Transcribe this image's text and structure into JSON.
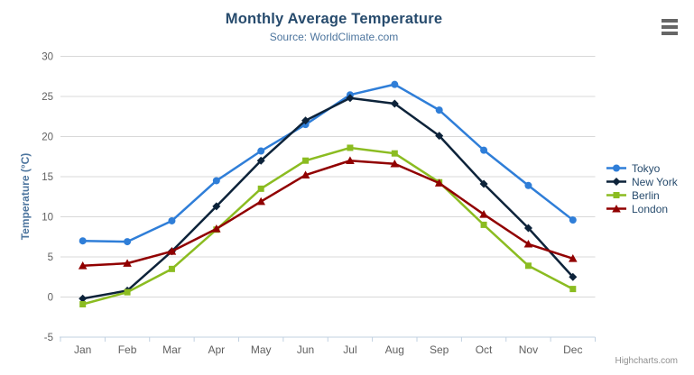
{
  "header": {
    "title": "Monthly Average Temperature",
    "subtitle": "Source: WorldClimate.com"
  },
  "credits": "Highcharts.com",
  "export_menu": {
    "icon": "hamburger-menu-icon"
  },
  "palette": {
    "title_text": "#274b6d",
    "subtitle_text": "#4d759e",
    "axis_title_text": "#4d759e",
    "tick_label_text": "#606060",
    "legend_text": "#274b6d",
    "grid_line": "#d8d8d8",
    "axis_line": "#c0d0e0",
    "credits_text": "#8f8f8f",
    "menu_icon": "#666666"
  },
  "chart_data": {
    "type": "line",
    "title": "Monthly Average Temperature",
    "subtitle": "Source: WorldClimate.com",
    "xlabel": "",
    "ylabel": "Temperature (°C)",
    "categories": [
      "Jan",
      "Feb",
      "Mar",
      "Apr",
      "May",
      "Jun",
      "Jul",
      "Aug",
      "Sep",
      "Oct",
      "Nov",
      "Dec"
    ],
    "ylim": [
      -5,
      30
    ],
    "yticks": [
      -5,
      0,
      5,
      10,
      15,
      20,
      25,
      30
    ],
    "grid": true,
    "legend_position": "right",
    "series": [
      {
        "name": "Tokyo",
        "color": "#2f7ed8",
        "marker": "circle",
        "values": [
          7.0,
          6.9,
          9.5,
          14.5,
          18.2,
          21.5,
          25.2,
          26.5,
          23.3,
          18.3,
          13.9,
          9.6
        ]
      },
      {
        "name": "New York",
        "color": "#0d233a",
        "marker": "diamond",
        "values": [
          -0.2,
          0.8,
          5.7,
          11.3,
          17.0,
          22.0,
          24.8,
          24.1,
          20.1,
          14.1,
          8.6,
          2.5
        ]
      },
      {
        "name": "Berlin",
        "color": "#8bbc21",
        "marker": "square",
        "values": [
          -0.9,
          0.6,
          3.5,
          8.4,
          13.5,
          17.0,
          18.6,
          17.9,
          14.3,
          9.0,
          3.9,
          1.0
        ]
      },
      {
        "name": "London",
        "color": "#910000",
        "marker": "triangle",
        "values": [
          3.9,
          4.2,
          5.7,
          8.5,
          11.9,
          15.2,
          17.0,
          16.6,
          14.2,
          10.3,
          6.6,
          4.8
        ]
      }
    ]
  }
}
